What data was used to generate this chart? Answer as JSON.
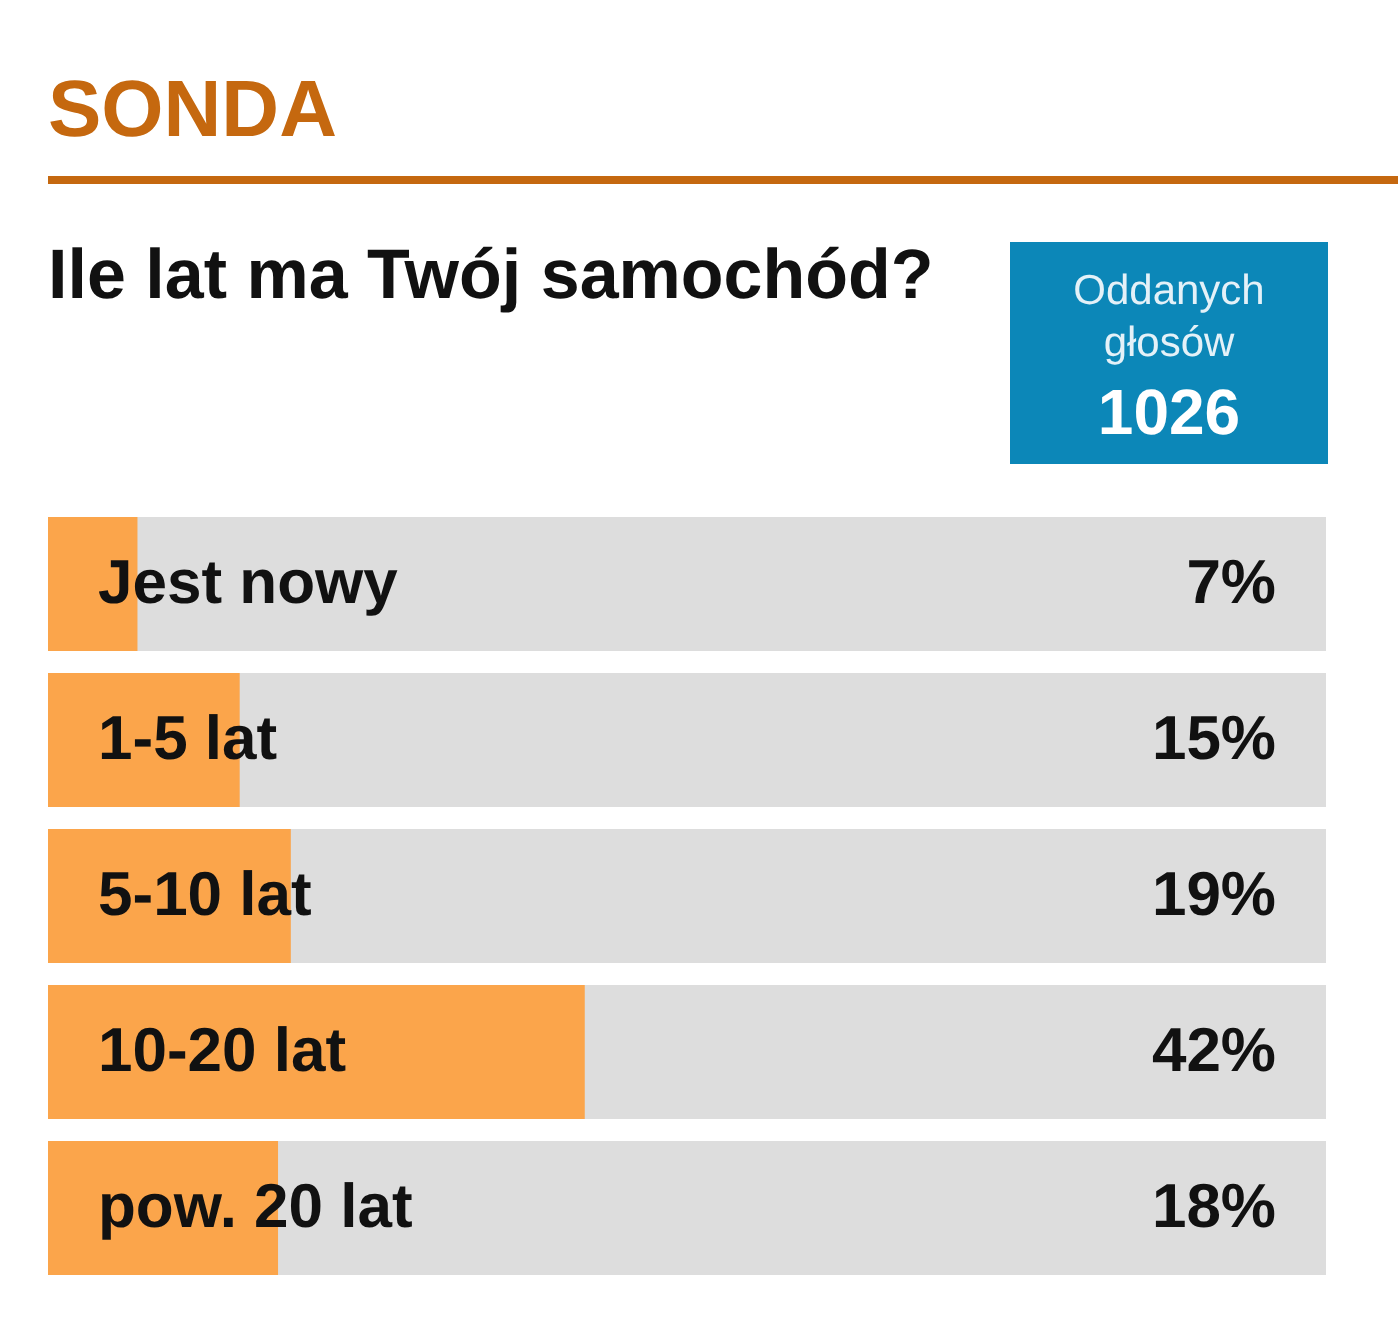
{
  "chart_data": {
    "type": "bar",
    "orientation": "horizontal",
    "title": "SONDA",
    "subtitle": "Ile lat ma Twój samochód?",
    "annotations": [
      "Oddanych głosów",
      "1026"
    ],
    "categories": [
      "Jest nowy",
      "1-5 lat",
      "5-10 lat",
      "10-20 lat",
      "pow. 20 lat"
    ],
    "values": [
      7,
      15,
      19,
      42,
      18
    ],
    "value_labels": [
      "7%",
      "15%",
      "19%",
      "42%",
      "18%"
    ],
    "color": "#fba54b",
    "xlim": [
      0,
      100
    ],
    "tick_labels": "y",
    "legend": false
  }
}
